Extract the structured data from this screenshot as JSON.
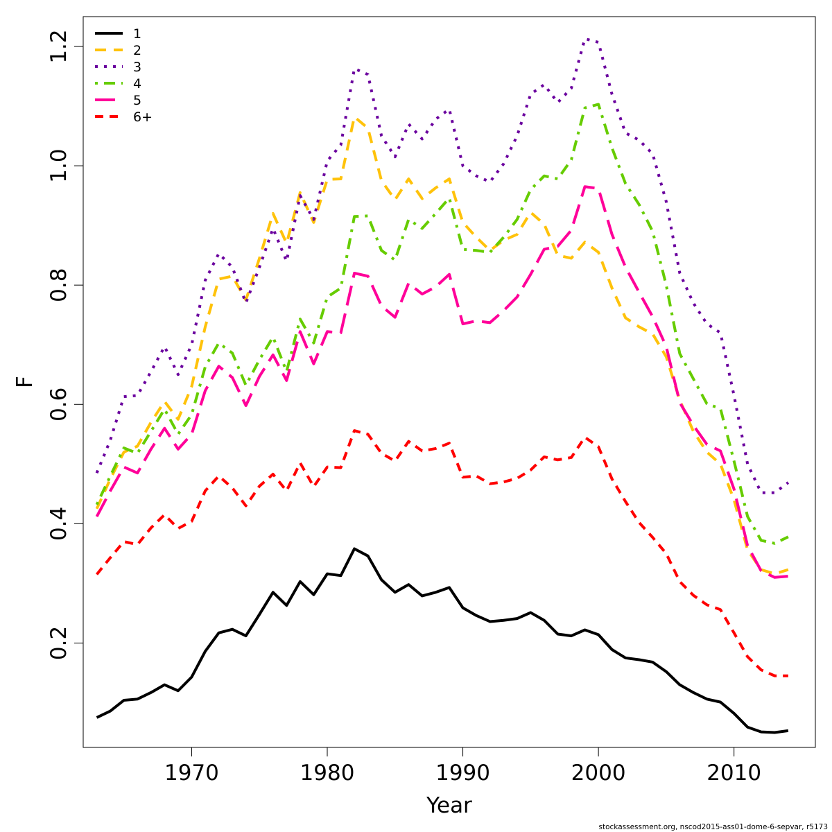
{
  "chart_data": {
    "type": "line",
    "title": "",
    "xlabel": "Year",
    "ylabel": "F",
    "xlim": [
      1962,
      2016
    ],
    "ylim": [
      0.025,
      1.25
    ],
    "xticks": [
      1970,
      1980,
      1990,
      2000,
      2010
    ],
    "yticks": [
      0.2,
      0.4,
      0.6,
      0.8,
      1.0,
      1.2
    ],
    "ytick_labels": [
      "0.2",
      "0.4",
      "0.6",
      "0.8",
      "1.0",
      "1.2"
    ],
    "grid": false,
    "legend_position": "top-left",
    "x": [
      1963,
      1964,
      1965,
      1966,
      1967,
      1968,
      1969,
      1970,
      1971,
      1972,
      1973,
      1974,
      1975,
      1976,
      1977,
      1978,
      1979,
      1980,
      1981,
      1982,
      1983,
      1984,
      1985,
      1986,
      1987,
      1988,
      1989,
      1990,
      1991,
      1992,
      1993,
      1994,
      1995,
      1996,
      1997,
      1998,
      1999,
      2000,
      2001,
      2002,
      2003,
      2004,
      2005,
      2006,
      2007,
      2008,
      2009,
      2010,
      2011,
      2012,
      2013,
      2014
    ],
    "series": [
      {
        "name": "1",
        "color": "#000000",
        "dash": "solid",
        "values": [
          0.075,
          0.086,
          0.104,
          0.106,
          0.117,
          0.13,
          0.12,
          0.143,
          0.186,
          0.217,
          0.223,
          0.212,
          0.248,
          0.285,
          0.263,
          0.303,
          0.281,
          0.316,
          0.313,
          0.358,
          0.346,
          0.306,
          0.285,
          0.298,
          0.279,
          0.285,
          0.293,
          0.259,
          0.246,
          0.236,
          0.238,
          0.241,
          0.251,
          0.238,
          0.215,
          0.212,
          0.222,
          0.214,
          0.189,
          0.175,
          0.172,
          0.168,
          0.152,
          0.13,
          0.117,
          0.106,
          0.101,
          0.082,
          0.059,
          0.051,
          0.05,
          0.053
        ]
      },
      {
        "name": "2",
        "color": "#FFC20A",
        "dash": "dashed",
        "values": [
          0.425,
          0.475,
          0.52,
          0.53,
          0.57,
          0.605,
          0.575,
          0.63,
          0.73,
          0.81,
          0.815,
          0.775,
          0.845,
          0.92,
          0.87,
          0.955,
          0.905,
          0.977,
          0.978,
          1.082,
          1.063,
          0.975,
          0.943,
          0.978,
          0.945,
          0.963,
          0.978,
          0.905,
          0.88,
          0.858,
          0.875,
          0.885,
          0.922,
          0.902,
          0.85,
          0.845,
          0.872,
          0.855,
          0.795,
          0.745,
          0.73,
          0.718,
          0.68,
          0.607,
          0.555,
          0.52,
          0.5,
          0.44,
          0.356,
          0.323,
          0.316,
          0.323
        ]
      },
      {
        "name": "3",
        "color": "#6A009E",
        "dash": "dotted",
        "values": [
          0.485,
          0.54,
          0.613,
          0.615,
          0.655,
          0.697,
          0.65,
          0.7,
          0.808,
          0.853,
          0.83,
          0.77,
          0.83,
          0.895,
          0.84,
          0.95,
          0.91,
          1.008,
          1.035,
          1.163,
          1.153,
          1.05,
          1.015,
          1.07,
          1.045,
          1.078,
          1.095,
          1.0,
          0.983,
          0.973,
          1.003,
          1.05,
          1.12,
          1.136,
          1.106,
          1.13,
          1.213,
          1.207,
          1.12,
          1.055,
          1.043,
          1.02,
          0.94,
          0.82,
          0.77,
          0.735,
          0.72,
          0.615,
          0.5,
          0.452,
          0.452,
          0.469
        ]
      },
      {
        "name": "4",
        "color": "#66CC00",
        "dash": "dotdash",
        "values": [
          0.432,
          0.48,
          0.527,
          0.518,
          0.555,
          0.592,
          0.55,
          0.583,
          0.663,
          0.703,
          0.686,
          0.632,
          0.675,
          0.713,
          0.655,
          0.743,
          0.703,
          0.78,
          0.795,
          0.915,
          0.916,
          0.858,
          0.842,
          0.91,
          0.895,
          0.92,
          0.946,
          0.86,
          0.858,
          0.855,
          0.88,
          0.91,
          0.96,
          0.983,
          0.978,
          1.01,
          1.097,
          1.103,
          1.03,
          0.97,
          0.935,
          0.89,
          0.8,
          0.685,
          0.643,
          0.601,
          0.593,
          0.505,
          0.412,
          0.372,
          0.367,
          0.378
        ]
      },
      {
        "name": "5",
        "color": "#FF0099",
        "dash": "longdash",
        "values": [
          0.412,
          0.455,
          0.495,
          0.485,
          0.525,
          0.56,
          0.525,
          0.55,
          0.623,
          0.664,
          0.645,
          0.598,
          0.647,
          0.683,
          0.64,
          0.722,
          0.668,
          0.722,
          0.72,
          0.82,
          0.815,
          0.765,
          0.746,
          0.803,
          0.785,
          0.797,
          0.818,
          0.735,
          0.74,
          0.737,
          0.757,
          0.78,
          0.818,
          0.86,
          0.865,
          0.892,
          0.965,
          0.962,
          0.885,
          0.83,
          0.788,
          0.747,
          0.697,
          0.603,
          0.565,
          0.533,
          0.522,
          0.458,
          0.363,
          0.321,
          0.31,
          0.312
        ]
      },
      {
        "name": "6+",
        "color": "#FF0000",
        "dash": "shortdash",
        "values": [
          0.315,
          0.343,
          0.37,
          0.365,
          0.393,
          0.415,
          0.392,
          0.404,
          0.455,
          0.48,
          0.46,
          0.43,
          0.463,
          0.483,
          0.455,
          0.502,
          0.462,
          0.495,
          0.494,
          0.556,
          0.55,
          0.518,
          0.505,
          0.538,
          0.522,
          0.526,
          0.535,
          0.478,
          0.48,
          0.467,
          0.47,
          0.476,
          0.49,
          0.512,
          0.507,
          0.511,
          0.545,
          0.529,
          0.475,
          0.437,
          0.402,
          0.377,
          0.35,
          0.303,
          0.28,
          0.264,
          0.256,
          0.217,
          0.177,
          0.155,
          0.145,
          0.145
        ]
      }
    ],
    "credit": "stockassessment.org, nscod2015-ass01-dome-6-sepvar, r5173"
  }
}
